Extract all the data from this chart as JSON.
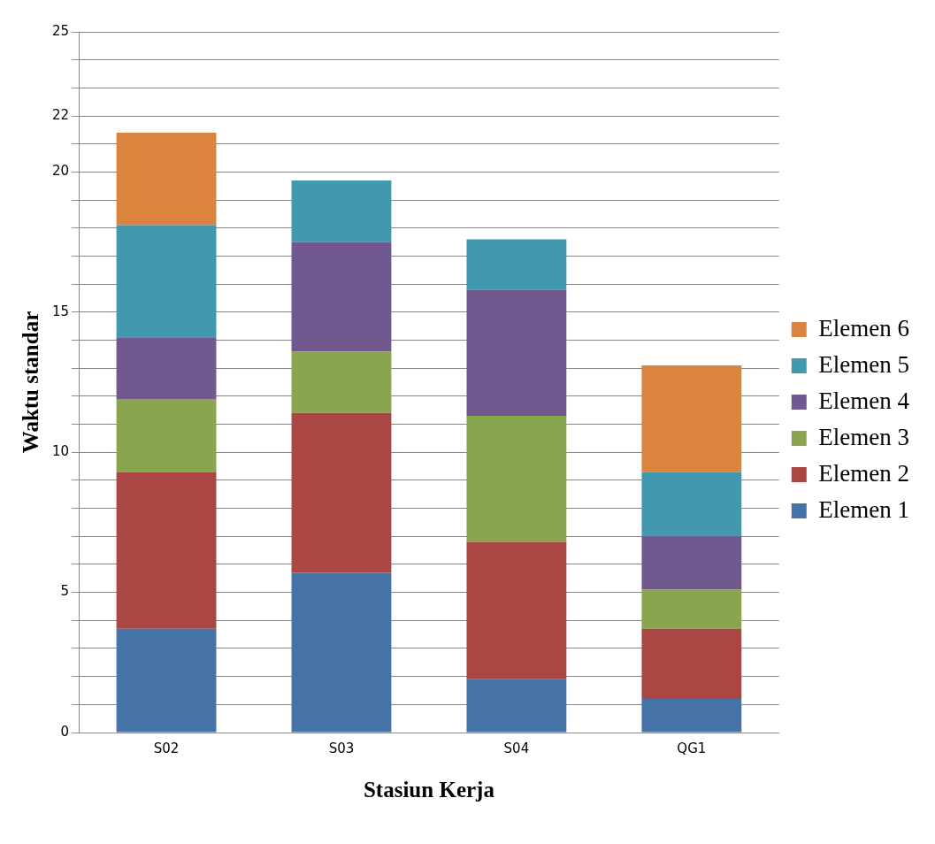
{
  "chart_data": {
    "type": "bar",
    "stacked": true,
    "xlabel": "Stasiun Kerja",
    "ylabel": "Waktu standar",
    "categories": [
      "S02",
      "S03",
      "S04",
      "QG1"
    ],
    "series": [
      {
        "name": "Elemen 1",
        "color": "#4572a7",
        "values": [
          3.7,
          5.7,
          1.9,
          1.2
        ]
      },
      {
        "name": "Elemen 2",
        "color": "#aa4643",
        "values": [
          5.6,
          5.7,
          4.9,
          2.5
        ]
      },
      {
        "name": "Elemen 3",
        "color": "#89a54e",
        "values": [
          2.6,
          2.2,
          4.5,
          1.4
        ]
      },
      {
        "name": "Elemen 4",
        "color": "#71588f",
        "values": [
          2.2,
          3.9,
          4.5,
          1.9
        ]
      },
      {
        "name": "Elemen 5",
        "color": "#4198af",
        "values": [
          4.0,
          2.2,
          1.8,
          2.3
        ]
      },
      {
        "name": "Elemen 6",
        "color": "#db843d",
        "values": [
          3.3,
          null,
          null,
          3.8
        ]
      }
    ],
    "ylim": [
      0,
      25
    ],
    "yticks": [
      0,
      {
        "value": 1,
        "label": null
      },
      {
        "value": 2,
        "label": null
      },
      {
        "value": 3,
        "label": null
      },
      {
        "value": 4,
        "label": null
      },
      5,
      {
        "value": 6,
        "label": null
      },
      {
        "value": 7,
        "label": null
      },
      {
        "value": 8,
        "label": null
      },
      {
        "value": 9,
        "label": null
      },
      10,
      {
        "value": 11,
        "label": null
      },
      {
        "value": 12,
        "label": null
      },
      {
        "value": 13,
        "label": null
      },
      {
        "value": 14,
        "label": null
      },
      15,
      {
        "value": 16,
        "label": null
      },
      {
        "value": 17,
        "label": null
      },
      {
        "value": 18,
        "label": null
      },
      {
        "value": 19,
        "label": null
      },
      20,
      {
        "value": 21,
        "label": null
      },
      22,
      {
        "value": 23,
        "label": null
      },
      {
        "value": 24,
        "label": null
      },
      25
    ],
    "grid": "y",
    "legend": "right"
  }
}
